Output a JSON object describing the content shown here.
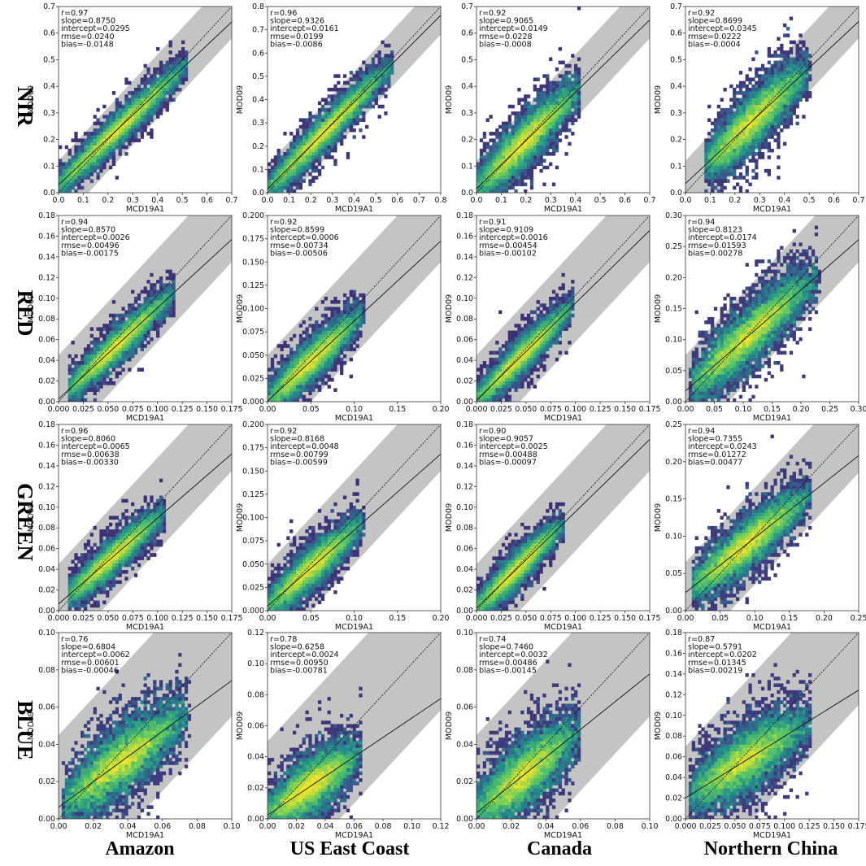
{
  "figure": {
    "row_labels": [
      "NIR",
      "RED",
      "GREEN",
      "BLUE"
    ],
    "column_labels": [
      "Amazon",
      "US East Coast",
      "Canada",
      "Northern China"
    ]
  },
  "chart_data": [
    {
      "type": "heatmap",
      "band": "NIR",
      "region": "Amazon",
      "xlabel": "MCD19A1",
      "ylabel": "MOD09",
      "lim": [
        0,
        0.7
      ],
      "ticks": [
        "0.0",
        "0.1",
        "0.2",
        "0.3",
        "0.4",
        "0.5",
        "0.6",
        "0.7"
      ],
      "stats": [
        "r=0.97",
        "slope=0.8750",
        "intercept=0.0295",
        "rmse=0.0240",
        "bias=-0.0148"
      ],
      "slope": 0.875,
      "intercept": 0.0295,
      "data_range": [
        0.0,
        0.52
      ],
      "spread": 0.022,
      "envelope": 0.12
    },
    {
      "type": "heatmap",
      "band": "NIR",
      "region": "US East Coast",
      "xlabel": "MCD19A1",
      "ylabel": "MOD09",
      "lim": [
        0,
        0.8
      ],
      "ticks": [
        "0.0",
        "0.1",
        "0.2",
        "0.3",
        "0.4",
        "0.5",
        "0.6",
        "0.7",
        "0.8"
      ],
      "stats": [
        "r=0.96",
        "slope=0.9326",
        "intercept=0.0161",
        "rmse=0.0199",
        "bias=-0.0086"
      ],
      "slope": 0.9326,
      "intercept": 0.0161,
      "data_range": [
        0.0,
        0.58
      ],
      "spread": 0.028,
      "envelope": 0.12
    },
    {
      "type": "heatmap",
      "band": "NIR",
      "region": "Canada",
      "xlabel": "MCD19A1",
      "ylabel": "MOD09",
      "lim": [
        0,
        0.7
      ],
      "ticks": [
        "0.0",
        "0.1",
        "0.2",
        "0.3",
        "0.4",
        "0.5",
        "0.6",
        "0.7"
      ],
      "stats": [
        "r=0.92",
        "slope=0.9065",
        "intercept=0.0149",
        "rmse=0.0228",
        "bias=-0.0008"
      ],
      "slope": 0.9065,
      "intercept": 0.0149,
      "data_range": [
        0.0,
        0.42
      ],
      "spread": 0.035,
      "envelope": 0.12
    },
    {
      "type": "heatmap",
      "band": "NIR",
      "region": "Northern China",
      "xlabel": "MCD19A1",
      "ylabel": "MOD09",
      "lim": [
        0,
        0.7
      ],
      "ticks": [
        "0.0",
        "0.1",
        "0.2",
        "0.3",
        "0.4",
        "0.5",
        "0.6",
        "0.7"
      ],
      "stats": [
        "r=0.92",
        "slope=0.8699",
        "intercept=0.0345",
        "rmse=0.0222",
        "bias=-0.0004"
      ],
      "slope": 0.8699,
      "intercept": 0.0345,
      "data_range": [
        0.08,
        0.5
      ],
      "spread": 0.04,
      "envelope": 0.12
    },
    {
      "type": "heatmap",
      "band": "RED",
      "region": "Amazon",
      "xlabel": "MCD19A1",
      "ylabel": "MOD09",
      "lim": [
        0,
        0.18
      ],
      "ticks": [
        "0.000",
        "0.025",
        "0.050",
        "0.075",
        "0.100",
        "0.125",
        "0.150",
        "0.175"
      ],
      "yticks": [
        "0.00",
        "0.02",
        "0.04",
        "0.06",
        "0.08",
        "0.10",
        "0.12",
        "0.14",
        "0.16",
        "0.18"
      ],
      "stats": [
        "r=0.94",
        "slope=0.8570",
        "intercept=0.0026",
        "rmse=0.00496",
        "bias=-0.00175"
      ],
      "slope": 0.857,
      "intercept": 0.0026,
      "data_range": [
        0.01,
        0.12
      ],
      "spread": 0.006,
      "envelope": 0.045
    },
    {
      "type": "heatmap",
      "band": "RED",
      "region": "US East Coast",
      "xlabel": "MCD19A1",
      "ylabel": "MOD09",
      "lim": [
        0,
        0.2
      ],
      "ticks": [
        "0.00",
        "0.05",
        "0.10",
        "0.15",
        "0.20"
      ],
      "yticks": [
        "0.000",
        "0.025",
        "0.050",
        "0.075",
        "0.100",
        "0.125",
        "0.150",
        "0.175",
        "0.200"
      ],
      "stats": [
        "r=0.92",
        "slope=0.8599",
        "intercept=0.0006",
        "rmse=0.00734",
        "bias=-0.00506"
      ],
      "slope": 0.8599,
      "intercept": 0.0006,
      "data_range": [
        0.0,
        0.11
      ],
      "spread": 0.008,
      "envelope": 0.05
    },
    {
      "type": "heatmap",
      "band": "RED",
      "region": "Canada",
      "xlabel": "MCD19A1",
      "ylabel": "MOD09",
      "lim": [
        0,
        0.18
      ],
      "ticks": [
        "0.000",
        "0.025",
        "0.050",
        "0.075",
        "0.100",
        "0.125",
        "0.150",
        "0.175"
      ],
      "yticks": [
        "0.00",
        "0.02",
        "0.04",
        "0.06",
        "0.08",
        "0.10",
        "0.12",
        "0.14",
        "0.16",
        "0.18"
      ],
      "stats": [
        "r=0.91",
        "slope=0.9109",
        "intercept=0.0016",
        "rmse=0.00454",
        "bias=-0.00102"
      ],
      "slope": 0.9109,
      "intercept": 0.0016,
      "data_range": [
        0.0,
        0.1
      ],
      "spread": 0.006,
      "envelope": 0.045
    },
    {
      "type": "heatmap",
      "band": "RED",
      "region": "Northern China",
      "xlabel": "MCD19A1",
      "ylabel": "MOD09",
      "lim": [
        0,
        0.3
      ],
      "ticks": [
        "0.00",
        "0.05",
        "0.10",
        "0.15",
        "0.20",
        "0.25",
        "0.30"
      ],
      "yticks": [
        "0.00",
        "0.05",
        "0.10",
        "0.15",
        "0.20",
        "0.25",
        "0.30"
      ],
      "stats": [
        "r=0.94",
        "slope=0.8123",
        "intercept=0.0174",
        "rmse=0.01593",
        "bias=0.00278"
      ],
      "slope": 0.8123,
      "intercept": 0.0174,
      "data_range": [
        0.01,
        0.23
      ],
      "spread": 0.018,
      "envelope": 0.075
    },
    {
      "type": "heatmap",
      "band": "GREEN",
      "region": "Amazon",
      "xlabel": "MCD19A1",
      "ylabel": "MOD09",
      "lim": [
        0,
        0.18
      ],
      "ticks": [
        "0.000",
        "0.025",
        "0.050",
        "0.075",
        "0.100",
        "0.125",
        "0.150",
        "0.175"
      ],
      "yticks": [
        "0.00",
        "0.02",
        "0.04",
        "0.06",
        "0.08",
        "0.10",
        "0.12",
        "0.14",
        "0.16",
        "0.18"
      ],
      "stats": [
        "r=0.96",
        "slope=0.8060",
        "intercept=0.0065",
        "rmse=0.00638",
        "bias=-0.00330"
      ],
      "slope": 0.806,
      "intercept": 0.0065,
      "data_range": [
        0.01,
        0.11
      ],
      "spread": 0.006,
      "envelope": 0.045
    },
    {
      "type": "heatmap",
      "band": "GREEN",
      "region": "US East Coast",
      "xlabel": "MCD19A1",
      "ylabel": "MOD09",
      "lim": [
        0,
        0.2
      ],
      "ticks": [
        "0.00",
        "0.05",
        "0.10",
        "0.15",
        "0.20"
      ],
      "yticks": [
        "0.000",
        "0.025",
        "0.050",
        "0.075",
        "0.100",
        "0.125",
        "0.150",
        "0.175",
        "0.200"
      ],
      "stats": [
        "r=0.92",
        "slope=0.8168",
        "intercept=0.0048",
        "rmse=0.00799",
        "bias=-0.00599"
      ],
      "slope": 0.8168,
      "intercept": 0.0048,
      "data_range": [
        0.0,
        0.11
      ],
      "spread": 0.008,
      "envelope": 0.05
    },
    {
      "type": "heatmap",
      "band": "GREEN",
      "region": "Canada",
      "xlabel": "MCD19A1",
      "ylabel": "MOD09",
      "lim": [
        0,
        0.18
      ],
      "ticks": [
        "0.000",
        "0.025",
        "0.050",
        "0.075",
        "0.100",
        "0.125",
        "0.150",
        "0.175"
      ],
      "yticks": [
        "0.00",
        "0.02",
        "0.04",
        "0.06",
        "0.08",
        "0.10",
        "0.12",
        "0.14",
        "0.16",
        "0.18"
      ],
      "stats": [
        "r=0.90",
        "slope=0.9057",
        "intercept=0.0025",
        "rmse=0.00488",
        "bias=-0.00097"
      ],
      "slope": 0.9057,
      "intercept": 0.0025,
      "data_range": [
        0.0,
        0.09
      ],
      "spread": 0.006,
      "envelope": 0.045
    },
    {
      "type": "heatmap",
      "band": "GREEN",
      "region": "Northern China",
      "xlabel": "MCD19A1",
      "ylabel": "MOD09",
      "lim": [
        0,
        0.25
      ],
      "ticks": [
        "0.00",
        "0.05",
        "0.10",
        "0.15",
        "0.20",
        "0.25"
      ],
      "yticks": [
        "0.00",
        "0.05",
        "0.10",
        "0.15",
        "0.20",
        "0.25"
      ],
      "stats": [
        "r=0.94",
        "slope=0.7355",
        "intercept=0.0243",
        "rmse=0.01272",
        "bias=0.00477"
      ],
      "slope": 0.7355,
      "intercept": 0.0243,
      "data_range": [
        0.01,
        0.18
      ],
      "spread": 0.013,
      "envelope": 0.065
    },
    {
      "type": "heatmap",
      "band": "BLUE",
      "region": "Amazon",
      "xlabel": "MCD19A1",
      "ylabel": "MOD09",
      "lim": [
        0,
        0.1
      ],
      "ticks": [
        "0.00",
        "0.02",
        "0.04",
        "0.06",
        "0.08",
        "0.10"
      ],
      "stats": [
        "r=0.76",
        "slope=0.6804",
        "intercept=0.0062",
        "rmse=0.00601",
        "bias=-0.00046"
      ],
      "slope": 0.6804,
      "intercept": 0.0062,
      "data_range": [
        0.003,
        0.075
      ],
      "spread": 0.007,
      "envelope": 0.045
    },
    {
      "type": "heatmap",
      "band": "BLUE",
      "region": "US East Coast",
      "xlabel": "MCD19A1",
      "ylabel": "MOD09",
      "lim": [
        0,
        0.12
      ],
      "ticks": [
        "0.00",
        "0.02",
        "0.04",
        "0.06",
        "0.08",
        "0.10",
        "0.12"
      ],
      "yticks": [
        "0.00",
        "0.02",
        "0.04",
        "0.06",
        "0.08",
        "0.10",
        "0.12"
      ],
      "stats": [
        "r=0.78",
        "slope=0.6258",
        "intercept=0.0024",
        "rmse=0.00950",
        "bias=-0.00781"
      ],
      "slope": 0.6258,
      "intercept": 0.0024,
      "data_range": [
        0.0,
        0.065
      ],
      "spread": 0.007,
      "envelope": 0.05
    },
    {
      "type": "heatmap",
      "band": "BLUE",
      "region": "Canada",
      "xlabel": "MCD19A1",
      "ylabel": "MOD09",
      "lim": [
        0,
        0.1
      ],
      "ticks": [
        "0.00",
        "0.02",
        "0.04",
        "0.06",
        "0.08",
        "0.10"
      ],
      "stats": [
        "r=0.74",
        "slope=0.7460",
        "intercept=0.0032",
        "rmse=0.00486",
        "bias=-0.00145"
      ],
      "slope": 0.746,
      "intercept": 0.0032,
      "data_range": [
        0.0,
        0.06
      ],
      "spread": 0.007,
      "envelope": 0.045
    },
    {
      "type": "heatmap",
      "band": "BLUE",
      "region": "Northern China",
      "xlabel": "MCD19A1",
      "ylabel": "MOD09",
      "lim": [
        0,
        0.18
      ],
      "ticks": [
        "0.000",
        "0.025",
        "0.050",
        "0.075",
        "0.100",
        "0.125",
        "0.150",
        "0.175"
      ],
      "yticks": [
        "0.00",
        "0.02",
        "0.04",
        "0.06",
        "0.08",
        "0.10",
        "0.12",
        "0.14",
        "0.16",
        "0.18"
      ],
      "stats": [
        "r=0.87",
        "slope=0.5791",
        "intercept=0.0202",
        "rmse=0.01345",
        "bias=0.00219"
      ],
      "slope": 0.5791,
      "intercept": 0.0202,
      "data_range": [
        0.005,
        0.13
      ],
      "spread": 0.012,
      "envelope": 0.07
    }
  ]
}
